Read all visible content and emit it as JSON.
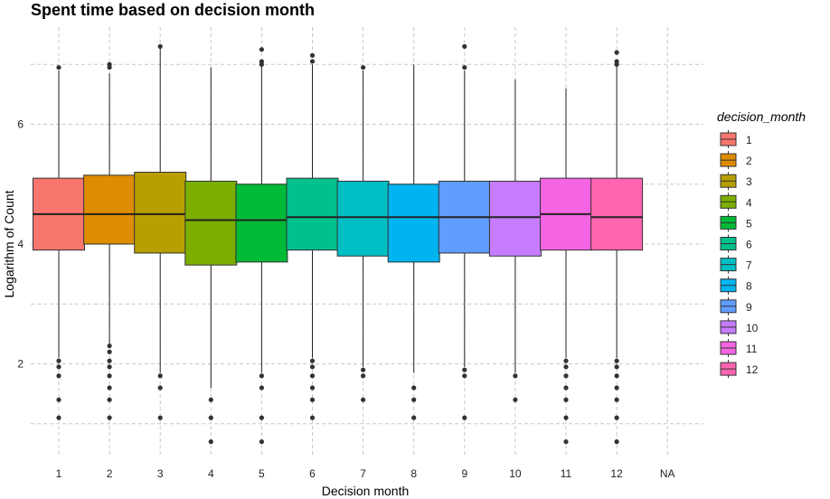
{
  "chart_data": {
    "type": "boxplot",
    "title": "Spent time based on decision month",
    "xlabel": "Decision month",
    "ylabel": "Logarithm of Count",
    "categories": [
      "1",
      "2",
      "3",
      "4",
      "5",
      "6",
      "7",
      "8",
      "9",
      "10",
      "11",
      "12",
      "NA"
    ],
    "yticks": [
      2,
      4,
      6
    ],
    "ylim": [
      0.6,
      7.5
    ],
    "grid": true,
    "legend": {
      "title": "decision_month",
      "position": "right",
      "labels": [
        "1",
        "2",
        "3",
        "4",
        "5",
        "6",
        "7",
        "8",
        "9",
        "10",
        "11",
        "12"
      ]
    },
    "colors": [
      "#F8766D",
      "#DE8C00",
      "#B79F00",
      "#7CAE00",
      "#00BA38",
      "#00C08B",
      "#00BFC4",
      "#00B4F0",
      "#619CFF",
      "#C77CFF",
      "#F564E3",
      "#FF64B0"
    ],
    "boxes": [
      {
        "category": "1",
        "whisker_low": 2.1,
        "q1": 3.9,
        "median": 4.5,
        "q3": 5.1,
        "whisker_high": 6.9,
        "outliers": [
          2.05,
          1.95,
          1.8,
          1.4,
          1.1,
          6.95
        ]
      },
      {
        "category": "2",
        "whisker_low": 2.3,
        "q1": 4.0,
        "median": 4.5,
        "q3": 5.15,
        "whisker_high": 6.85,
        "outliers": [
          2.3,
          2.2,
          2.05,
          1.95,
          1.8,
          1.6,
          1.4,
          1.1,
          6.95,
          7.0
        ]
      },
      {
        "category": "3",
        "whisker_low": 1.85,
        "q1": 3.85,
        "median": 4.5,
        "q3": 5.2,
        "whisker_high": 7.3,
        "outliers": [
          1.8,
          1.6,
          1.1,
          7.3
        ]
      },
      {
        "category": "4",
        "whisker_low": 1.6,
        "q1": 3.65,
        "median": 4.4,
        "q3": 5.05,
        "whisker_high": 6.95,
        "outliers": [
          1.4,
          1.1,
          0.7
        ]
      },
      {
        "category": "5",
        "whisker_low": 1.85,
        "q1": 3.7,
        "median": 4.4,
        "q3": 5.0,
        "whisker_high": 7.0,
        "outliers": [
          1.8,
          1.6,
          1.1,
          0.7,
          7.05,
          7.0,
          7.25
        ]
      },
      {
        "category": "6",
        "whisker_low": 2.1,
        "q1": 3.9,
        "median": 4.45,
        "q3": 5.1,
        "whisker_high": 7.0,
        "outliers": [
          2.05,
          1.95,
          1.8,
          1.6,
          1.4,
          1.1,
          7.05,
          7.15
        ]
      },
      {
        "category": "7",
        "whisker_low": 1.95,
        "q1": 3.8,
        "median": 4.45,
        "q3": 5.05,
        "whisker_high": 6.9,
        "outliers": [
          1.9,
          1.8,
          1.4,
          6.95
        ]
      },
      {
        "category": "8",
        "whisker_low": 1.85,
        "q1": 3.7,
        "median": 4.45,
        "q3": 5.0,
        "whisker_high": 7.0,
        "outliers": [
          1.6,
          1.4,
          1.1
        ]
      },
      {
        "category": "9",
        "whisker_low": 1.95,
        "q1": 3.85,
        "median": 4.45,
        "q3": 5.05,
        "whisker_high": 6.9,
        "outliers": [
          1.9,
          1.8,
          1.1,
          6.95,
          7.3
        ]
      },
      {
        "category": "10",
        "whisker_low": 1.85,
        "q1": 3.8,
        "median": 4.45,
        "q3": 5.05,
        "whisker_high": 6.75,
        "outliers": [
          1.8,
          1.4
        ]
      },
      {
        "category": "11",
        "whisker_low": 2.1,
        "q1": 3.9,
        "median": 4.5,
        "q3": 5.1,
        "whisker_high": 6.6,
        "outliers": [
          2.05,
          1.95,
          1.8,
          1.6,
          1.4,
          1.1,
          0.7
        ]
      },
      {
        "category": "12",
        "whisker_low": 2.1,
        "q1": 3.9,
        "median": 4.45,
        "q3": 5.1,
        "whisker_high": 7.0,
        "outliers": [
          2.05,
          1.95,
          1.8,
          1.6,
          1.4,
          1.1,
          0.7,
          7.0,
          7.05,
          7.2
        ]
      }
    ]
  }
}
